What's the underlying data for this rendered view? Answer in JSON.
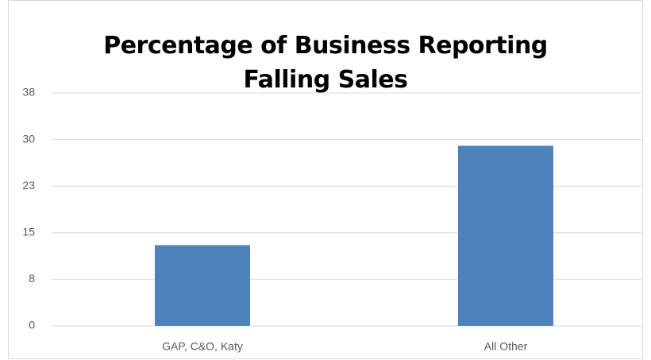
{
  "chart_data": {
    "type": "bar",
    "title": "Percentage of Business Reporting Falling Sales",
    "categories": [
      "GAP, C&O, Katy",
      "All Other"
    ],
    "values": [
      13,
      29
    ],
    "color": "#4f81bd",
    "ylim": [
      0,
      37.5
    ],
    "yticks": [
      0,
      {
        "value": 7.5,
        "label": "8"
      },
      15,
      {
        "value": 22.5,
        "label": "23"
      },
      30,
      {
        "value": 37.5,
        "label": "38"
      }
    ],
    "grid": true
  }
}
